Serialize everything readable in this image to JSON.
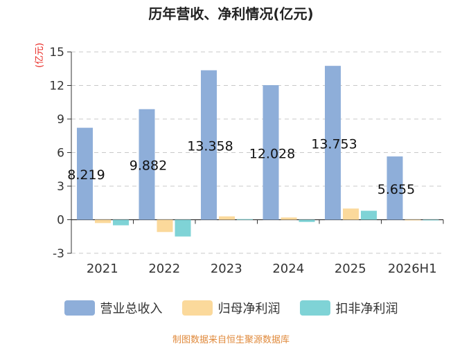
{
  "title": "历年营收、净利情况(亿元)",
  "unit_label": "(亿元)",
  "source": "制图数据来自恒生聚源数据库",
  "colors": {
    "revenue": "#8eaed9",
    "net_profit": "#fbd99b",
    "deducted_profit": "#7fd3d6",
    "grid": "#c8c8c8",
    "axis": "#333333",
    "unit": "#e8231d",
    "source": "#e08a3c"
  },
  "chart_data": {
    "type": "bar",
    "title": "历年营收、净利情况(亿元)",
    "ylabel": "(亿元)",
    "ylim": [
      -3,
      15
    ],
    "yticks": [
      -3,
      0,
      3,
      6,
      9,
      12,
      15
    ],
    "grid": true,
    "legend_position": "bottom",
    "categories": [
      "2021",
      "2022",
      "2023",
      "2024",
      "2025",
      "2026H1"
    ],
    "series": [
      {
        "name": "营业总收入",
        "values": [
          8.219,
          9.882,
          13.358,
          12.028,
          13.753,
          5.655
        ]
      },
      {
        "name": "归母净利润",
        "values": [
          -0.3,
          -1.1,
          0.3,
          0.2,
          1.0,
          0.0
        ]
      },
      {
        "name": "扣非净利润",
        "values": [
          -0.5,
          -1.5,
          0.05,
          -0.2,
          0.8,
          -0.05
        ]
      }
    ],
    "data_labels": [
      "8.219",
      "9.882",
      "13.358",
      "12.028",
      "13.753",
      "5.655"
    ]
  }
}
